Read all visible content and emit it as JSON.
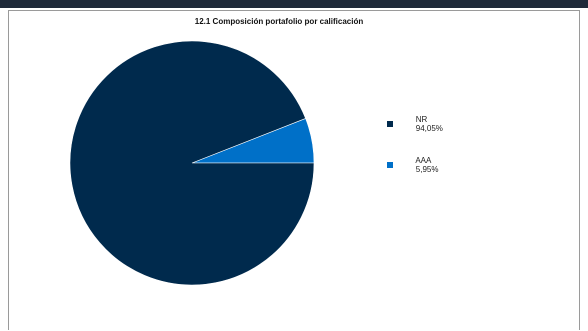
{
  "chart_data": {
    "type": "pie",
    "title": "12.1 Composición portafolio por calificación",
    "slices": [
      {
        "label": "NR",
        "value_label": "94,05%",
        "value": 94.05,
        "color": "#002a4d"
      },
      {
        "label": "AAA",
        "value_label": "5,95%",
        "value": 5.95,
        "color": "#0070c8"
      }
    ],
    "legend_position": "right",
    "grid": false
  },
  "colors": {
    "frame_border": "#9a9a9a",
    "top_rule": "#1f2a3a"
  }
}
